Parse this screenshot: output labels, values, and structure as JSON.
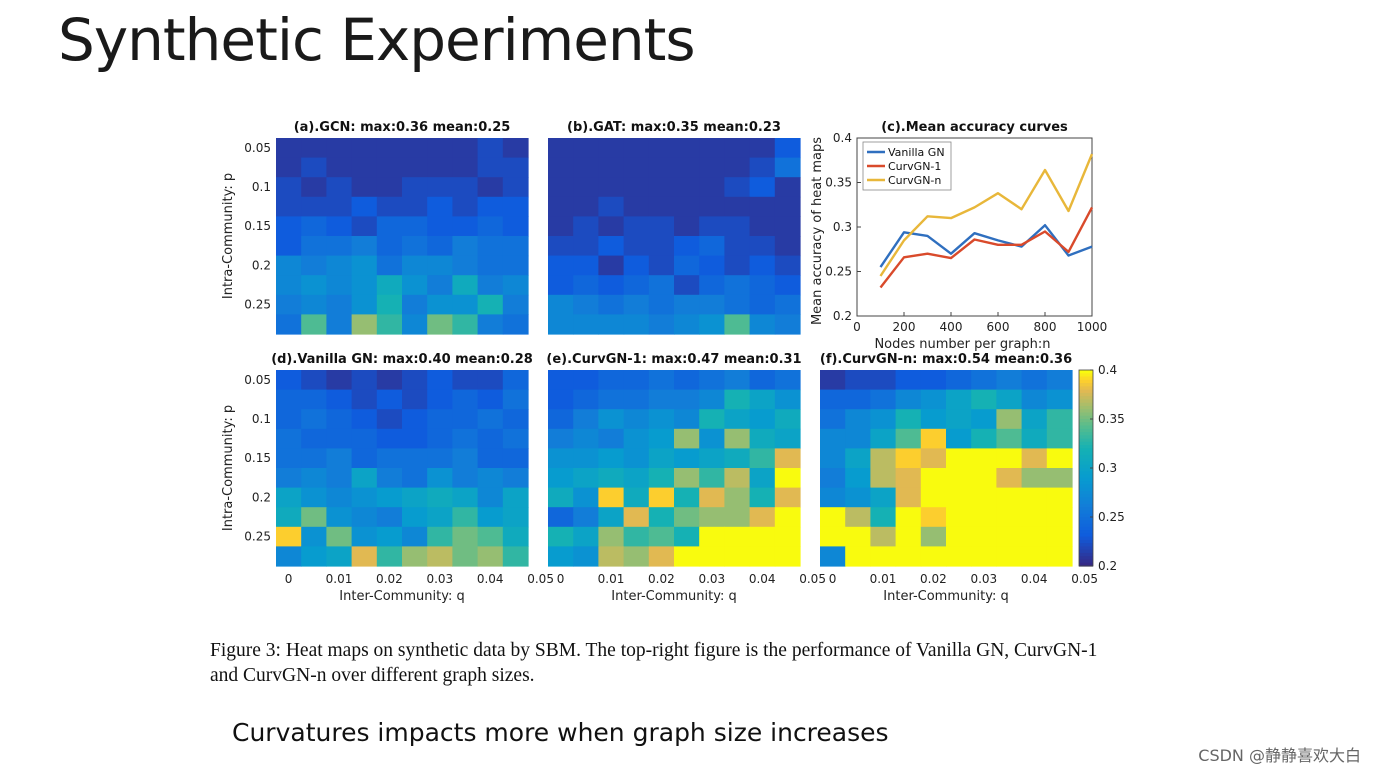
{
  "slide": {
    "title": "Synthetic Experiments",
    "caption": "Figure 3: Heat maps on synthetic data by SBM. The top-right figure is the performance of Vanilla GN, CurvGN-1 and CurvGN-n over different graph sizes.",
    "bottom_text": "Curvatures impacts more when graph size increases",
    "watermark": "CSDN @静静喜欢大白"
  },
  "chart_data": [
    {
      "type": "heatmap",
      "title": "(a).GCN: max:0.36 mean:0.25",
      "xlabel": "",
      "ylabel": "Intra-Community: p",
      "y_ticks": [
        "0.05",
        "0.1",
        "0.15",
        "0.2",
        "0.25"
      ],
      "x_ticks": [],
      "values": [
        [
          0.21,
          0.21,
          0.21,
          0.21,
          0.21,
          0.21,
          0.21,
          0.21,
          0.22,
          0.21
        ],
        [
          0.21,
          0.22,
          0.21,
          0.21,
          0.21,
          0.21,
          0.21,
          0.21,
          0.22,
          0.22
        ],
        [
          0.22,
          0.21,
          0.22,
          0.21,
          0.21,
          0.22,
          0.22,
          0.22,
          0.21,
          0.22
        ],
        [
          0.22,
          0.22,
          0.22,
          0.23,
          0.22,
          0.22,
          0.23,
          0.22,
          0.23,
          0.23
        ],
        [
          0.23,
          0.24,
          0.23,
          0.22,
          0.24,
          0.24,
          0.23,
          0.23,
          0.24,
          0.23
        ],
        [
          0.23,
          0.25,
          0.25,
          0.26,
          0.24,
          0.25,
          0.24,
          0.26,
          0.25,
          0.25
        ],
        [
          0.27,
          0.26,
          0.27,
          0.28,
          0.25,
          0.27,
          0.27,
          0.26,
          0.25,
          0.25
        ],
        [
          0.27,
          0.28,
          0.27,
          0.28,
          0.31,
          0.28,
          0.26,
          0.31,
          0.26,
          0.27
        ],
        [
          0.26,
          0.27,
          0.26,
          0.28,
          0.32,
          0.26,
          0.28,
          0.28,
          0.32,
          0.26
        ],
        [
          0.25,
          0.34,
          0.26,
          0.36,
          0.33,
          0.27,
          0.35,
          0.33,
          0.26,
          0.25
        ]
      ],
      "vmin": 0.2,
      "vmax": 0.4
    },
    {
      "type": "heatmap",
      "title": "(b).GAT: max:0.35 mean:0.23",
      "xlabel": "",
      "ylabel": "",
      "y_ticks": [],
      "x_ticks": [],
      "values": [
        [
          0.21,
          0.21,
          0.21,
          0.21,
          0.21,
          0.21,
          0.21,
          0.21,
          0.21,
          0.23
        ],
        [
          0.21,
          0.21,
          0.21,
          0.21,
          0.21,
          0.21,
          0.21,
          0.21,
          0.22,
          0.25
        ],
        [
          0.21,
          0.21,
          0.21,
          0.21,
          0.21,
          0.21,
          0.21,
          0.22,
          0.23,
          0.21
        ],
        [
          0.21,
          0.21,
          0.22,
          0.21,
          0.21,
          0.21,
          0.21,
          0.21,
          0.21,
          0.21
        ],
        [
          0.21,
          0.22,
          0.21,
          0.22,
          0.22,
          0.21,
          0.22,
          0.22,
          0.21,
          0.21
        ],
        [
          0.22,
          0.22,
          0.23,
          0.22,
          0.22,
          0.23,
          0.24,
          0.22,
          0.22,
          0.21
        ],
        [
          0.23,
          0.23,
          0.21,
          0.23,
          0.22,
          0.24,
          0.23,
          0.22,
          0.23,
          0.22
        ],
        [
          0.23,
          0.24,
          0.23,
          0.24,
          0.25,
          0.22,
          0.24,
          0.25,
          0.24,
          0.23
        ],
        [
          0.27,
          0.26,
          0.25,
          0.26,
          0.25,
          0.26,
          0.26,
          0.25,
          0.24,
          0.25
        ],
        [
          0.27,
          0.27,
          0.27,
          0.27,
          0.26,
          0.27,
          0.28,
          0.34,
          0.27,
          0.26
        ]
      ],
      "vmin": 0.2,
      "vmax": 0.4
    },
    {
      "type": "line",
      "title": "(c).Mean accuracy curves",
      "xlabel": "Nodes number per graph:n",
      "ylabel": "Mean accuracy of heat maps",
      "xlim": [
        0,
        1000
      ],
      "ylim": [
        0.2,
        0.4
      ],
      "x_ticks": [
        "0",
        "200",
        "400",
        "600",
        "800",
        "1000"
      ],
      "y_ticks": [
        "0.2",
        "0.25",
        "0.3",
        "0.35",
        "0.4"
      ],
      "x": [
        100,
        200,
        300,
        400,
        500,
        600,
        700,
        800,
        900,
        1000
      ],
      "series": [
        {
          "name": "Vanilla GN",
          "color": "#2f6fbf",
          "values": [
            0.255,
            0.294,
            0.29,
            0.27,
            0.293,
            0.285,
            0.278,
            0.302,
            0.268,
            0.278
          ]
        },
        {
          "name": "CurvGN-1",
          "color": "#d94a2b",
          "values": [
            0.232,
            0.266,
            0.27,
            0.265,
            0.286,
            0.28,
            0.28,
            0.295,
            0.272,
            0.322
          ]
        },
        {
          "name": "CurvGN-n",
          "color": "#e8b73a",
          "values": [
            0.245,
            0.285,
            0.312,
            0.31,
            0.322,
            0.338,
            0.32,
            0.364,
            0.318,
            0.382
          ]
        }
      ]
    },
    {
      "type": "heatmap",
      "title": "(d).Vanilla GN: max:0.40 mean:0.28",
      "xlabel": "Inter-Community: q",
      "ylabel": "Intra-Community: p",
      "y_ticks": [
        "0.05",
        "0.1",
        "0.15",
        "0.2",
        "0.25"
      ],
      "x_ticks": [
        "0",
        "0.01",
        "0.02",
        "0.03",
        "0.04",
        "0.05"
      ],
      "values": [
        [
          0.23,
          0.22,
          0.21,
          0.22,
          0.21,
          0.22,
          0.23,
          0.22,
          0.22,
          0.24
        ],
        [
          0.24,
          0.24,
          0.23,
          0.22,
          0.23,
          0.22,
          0.23,
          0.24,
          0.23,
          0.25
        ],
        [
          0.24,
          0.25,
          0.24,
          0.23,
          0.22,
          0.23,
          0.24,
          0.24,
          0.25,
          0.24
        ],
        [
          0.25,
          0.24,
          0.24,
          0.24,
          0.23,
          0.23,
          0.24,
          0.25,
          0.24,
          0.25
        ],
        [
          0.25,
          0.25,
          0.26,
          0.24,
          0.25,
          0.25,
          0.25,
          0.26,
          0.24,
          0.24
        ],
        [
          0.26,
          0.27,
          0.26,
          0.3,
          0.26,
          0.25,
          0.28,
          0.26,
          0.27,
          0.26
        ],
        [
          0.3,
          0.28,
          0.27,
          0.28,
          0.29,
          0.3,
          0.31,
          0.3,
          0.27,
          0.3
        ],
        [
          0.31,
          0.35,
          0.28,
          0.27,
          0.26,
          0.29,
          0.3,
          0.33,
          0.29,
          0.3
        ],
        [
          0.39,
          0.28,
          0.35,
          0.28,
          0.29,
          0.27,
          0.33,
          0.35,
          0.34,
          0.31
        ],
        [
          0.27,
          0.29,
          0.3,
          0.38,
          0.33,
          0.36,
          0.37,
          0.35,
          0.36,
          0.33
        ]
      ],
      "vmin": 0.2,
      "vmax": 0.4
    },
    {
      "type": "heatmap",
      "title": "(e).CurvGN-1: max:0.47 mean:0.31",
      "xlabel": "Inter-Community: q",
      "ylabel": "",
      "y_ticks": [],
      "x_ticks": [
        "0",
        "0.01",
        "0.02",
        "0.03",
        "0.04",
        "0.05"
      ],
      "values": [
        [
          0.23,
          0.23,
          0.24,
          0.24,
          0.25,
          0.24,
          0.25,
          0.26,
          0.24,
          0.25
        ],
        [
          0.23,
          0.24,
          0.25,
          0.25,
          0.26,
          0.26,
          0.27,
          0.32,
          0.3,
          0.28
        ],
        [
          0.24,
          0.26,
          0.28,
          0.27,
          0.28,
          0.27,
          0.32,
          0.3,
          0.29,
          0.31
        ],
        [
          0.26,
          0.27,
          0.26,
          0.28,
          0.29,
          0.36,
          0.28,
          0.36,
          0.31,
          0.3
        ],
        [
          0.28,
          0.28,
          0.29,
          0.28,
          0.3,
          0.29,
          0.3,
          0.31,
          0.33,
          0.38
        ],
        [
          0.29,
          0.3,
          0.31,
          0.3,
          0.32,
          0.36,
          0.33,
          0.37,
          0.3,
          0.4
        ],
        [
          0.31,
          0.28,
          0.39,
          0.31,
          0.39,
          0.32,
          0.38,
          0.36,
          0.32,
          0.38
        ],
        [
          0.24,
          0.26,
          0.3,
          0.38,
          0.32,
          0.35,
          0.36,
          0.36,
          0.38,
          0.4
        ],
        [
          0.32,
          0.3,
          0.36,
          0.33,
          0.34,
          0.32,
          0.4,
          0.4,
          0.4,
          0.4
        ],
        [
          0.29,
          0.28,
          0.37,
          0.36,
          0.38,
          0.4,
          0.4,
          0.4,
          0.4,
          0.4
        ]
      ],
      "vmin": 0.2,
      "vmax": 0.4
    },
    {
      "type": "heatmap",
      "title": "(f).CurvGN-n: max:0.54 mean:0.36",
      "xlabel": "Inter-Community: q",
      "ylabel": "",
      "y_ticks": [],
      "x_ticks": [
        "0",
        "0.01",
        "0.02",
        "0.03",
        "0.04",
        "0.05"
      ],
      "values": [
        [
          0.21,
          0.22,
          0.22,
          0.23,
          0.23,
          0.24,
          0.25,
          0.26,
          0.25,
          0.26
        ],
        [
          0.24,
          0.24,
          0.25,
          0.27,
          0.28,
          0.3,
          0.32,
          0.3,
          0.27,
          0.28
        ],
        [
          0.25,
          0.27,
          0.28,
          0.32,
          0.29,
          0.3,
          0.29,
          0.36,
          0.3,
          0.33
        ],
        [
          0.27,
          0.27,
          0.3,
          0.34,
          0.39,
          0.29,
          0.32,
          0.34,
          0.31,
          0.33
        ],
        [
          0.27,
          0.3,
          0.37,
          0.39,
          0.38,
          0.4,
          0.4,
          0.4,
          0.38,
          0.4
        ],
        [
          0.26,
          0.29,
          0.37,
          0.38,
          0.4,
          0.4,
          0.4,
          0.38,
          0.36,
          0.36
        ],
        [
          0.27,
          0.28,
          0.3,
          0.38,
          0.4,
          0.4,
          0.4,
          0.4,
          0.4,
          0.4
        ],
        [
          0.4,
          0.37,
          0.32,
          0.4,
          0.39,
          0.4,
          0.4,
          0.4,
          0.4,
          0.4
        ],
        [
          0.4,
          0.4,
          0.37,
          0.4,
          0.36,
          0.4,
          0.4,
          0.4,
          0.4,
          0.4
        ],
        [
          0.27,
          0.4,
          0.4,
          0.4,
          0.4,
          0.4,
          0.4,
          0.4,
          0.4,
          0.4
        ]
      ],
      "vmin": 0.2,
      "vmax": 0.4
    }
  ],
  "colorbar": {
    "ticks": [
      "0.4",
      "0.35",
      "0.3",
      "0.25",
      "0.2"
    ],
    "vmin": 0.2,
    "vmax": 0.4
  }
}
